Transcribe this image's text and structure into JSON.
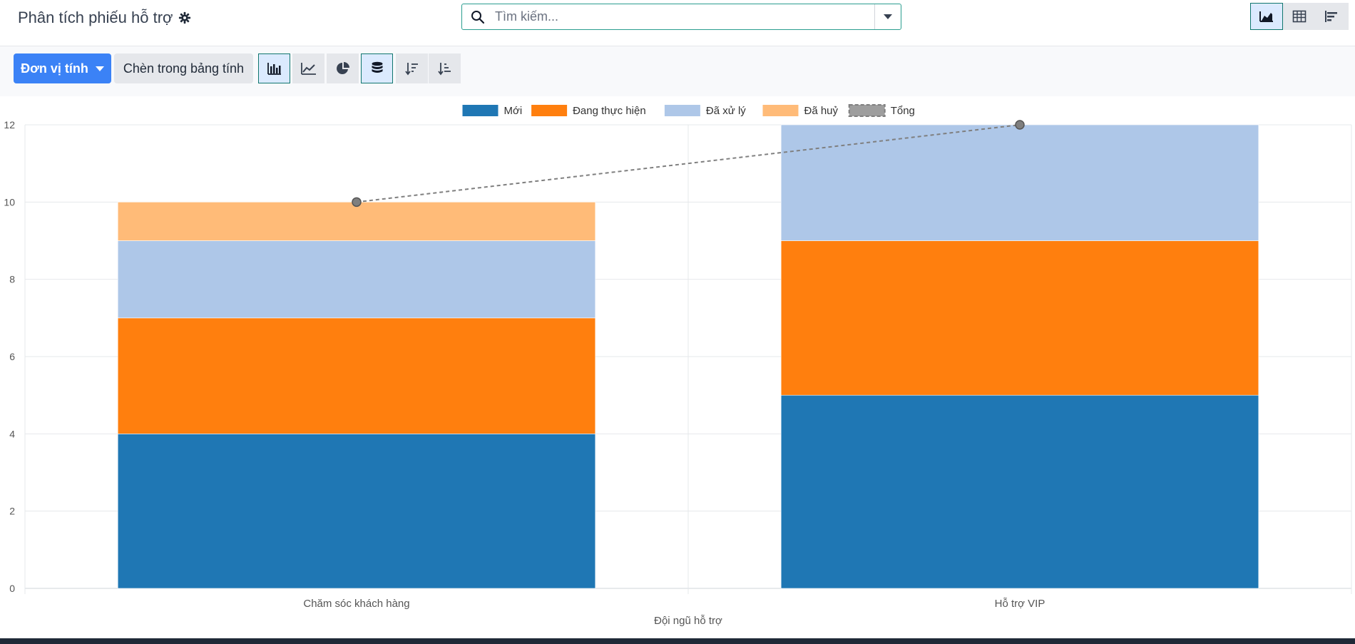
{
  "header": {
    "title": "Phân tích phiếu hỗ trợ",
    "search_placeholder": "Tìm kiếm..."
  },
  "toolbar": {
    "measure_label": "Đơn vị tính",
    "insert_label": "Chèn trong bảng tính"
  },
  "colors": {
    "accent": "#3b82f6",
    "active_border": "#0f766e"
  },
  "icons": [
    "gear-icon",
    "search-icon",
    "chevron-down-icon",
    "graph-view-icon",
    "pivot-view-icon",
    "list-view-icon",
    "bar-chart-icon",
    "line-chart-icon",
    "pie-chart-icon",
    "stacked-icon",
    "sort-desc-icon",
    "sort-asc-icon"
  ],
  "chart_data": {
    "type": "bar",
    "stacked": true,
    "categories": [
      "Chăm sóc khách hàng",
      "Hỗ trợ VIP"
    ],
    "series": [
      {
        "name": "Mới",
        "color": "#1f77b4",
        "values": [
          4,
          5
        ]
      },
      {
        "name": "Đang thực hiện",
        "color": "#ff7f0e",
        "values": [
          3,
          4
        ]
      },
      {
        "name": "Đã xử lý",
        "color": "#aec7e8",
        "values": [
          2,
          3
        ]
      },
      {
        "name": "Đã huỷ",
        "color": "#ffbb78",
        "values": [
          1,
          0
        ]
      }
    ],
    "total": {
      "name": "Tổng",
      "values": [
        10,
        12
      ],
      "style": "dashed-line"
    },
    "xlabel": "Đội ngũ hỗ trợ",
    "ylabel": "",
    "ylim": [
      0,
      12
    ],
    "yticks": [
      0,
      2,
      4,
      6,
      8,
      10,
      12
    ],
    "legend": "top-center",
    "grid": true
  }
}
